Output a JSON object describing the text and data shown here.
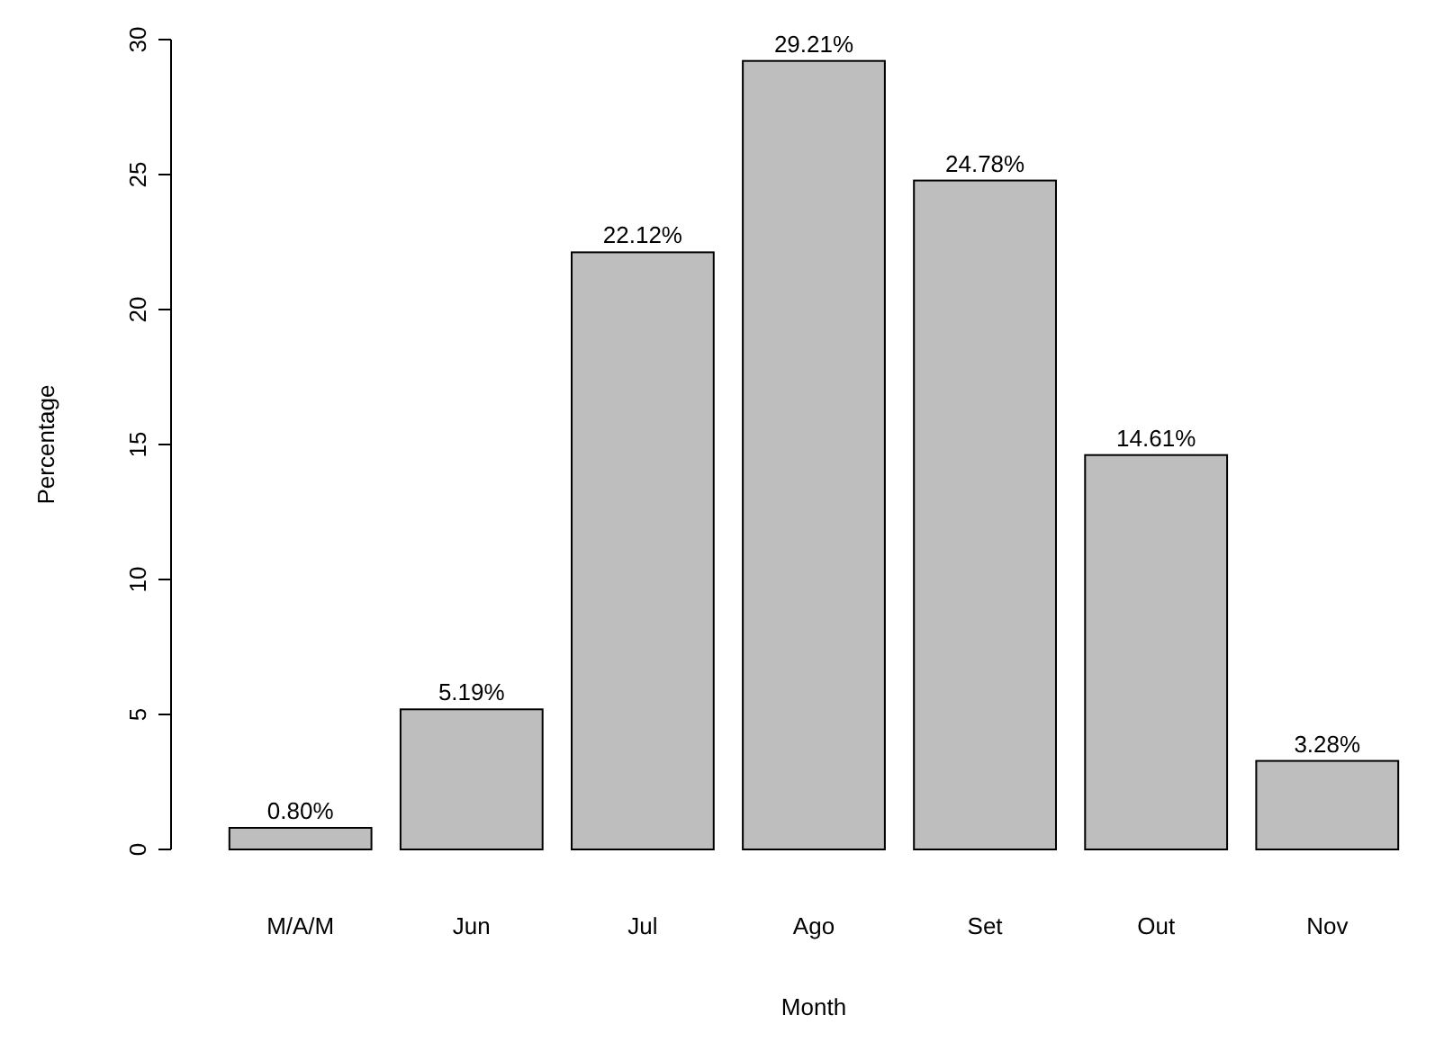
{
  "chart_data": {
    "type": "bar",
    "xlabel": "Month",
    "ylabel": "Percentage",
    "categories": [
      "M/A/M",
      "Jun",
      "Jul",
      "Ago",
      "Set",
      "Out",
      "Nov"
    ],
    "values": [
      0.8,
      5.19,
      22.12,
      29.21,
      24.78,
      14.61,
      3.28
    ],
    "value_labels": [
      "0.80%",
      "5.19%",
      "22.12%",
      "29.21%",
      "24.78%",
      "14.61%",
      "3.28%"
    ],
    "color": "#bebebe",
    "ylim": [
      0,
      30
    ],
    "yticks": [
      0,
      5,
      10,
      15,
      20,
      25,
      30
    ],
    "grid": false
  }
}
